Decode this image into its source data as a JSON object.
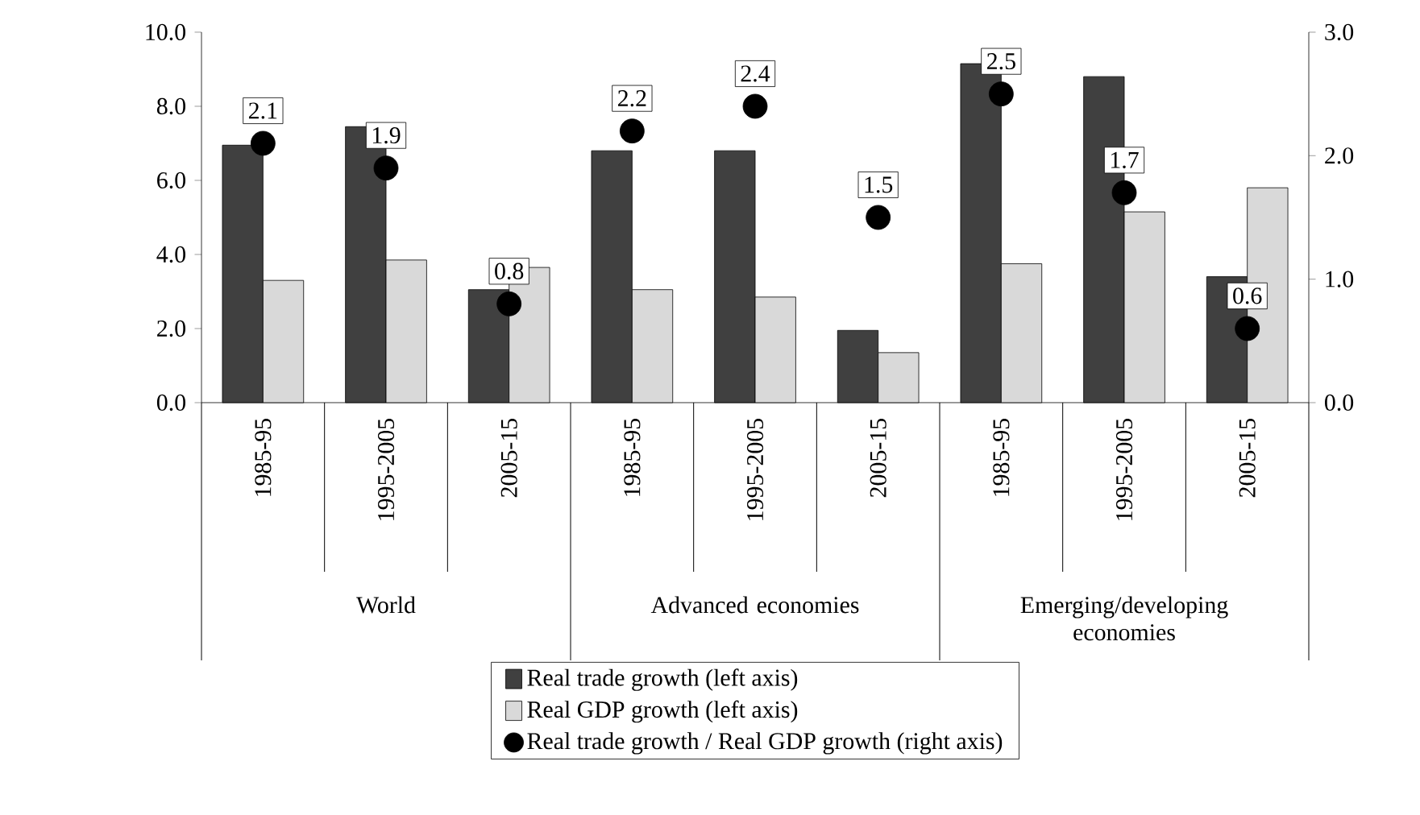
{
  "chart_data": {
    "type": "bar",
    "categories": [
      "1985-95",
      "1995-2005",
      "2005-15",
      "1985-95",
      "1995-2005",
      "2005-15",
      "1985-95",
      "1995-2005",
      "2005-15"
    ],
    "series": [
      {
        "name": "Real trade growth (left axis)",
        "type": "bar",
        "color": "#404040",
        "values": [
          6.95,
          7.45,
          3.05,
          6.8,
          6.8,
          1.95,
          9.15,
          8.8,
          3.4
        ]
      },
      {
        "name": "Real GDP growth (left axis)",
        "type": "bar",
        "color": "#d9d9d9",
        "values": [
          3.3,
          3.85,
          3.65,
          3.05,
          2.85,
          1.35,
          3.75,
          5.15,
          5.8
        ]
      },
      {
        "name": "Real trade growth / Real GDP growth (right axis)",
        "type": "scatter",
        "axis": "y2",
        "color": "#000000",
        "values": [
          2.1,
          1.9,
          0.8,
          2.2,
          2.4,
          1.5,
          2.5,
          1.7,
          0.6
        ],
        "value_labels": [
          "2.1",
          "1.9",
          "0.8",
          "2.2",
          "2.4",
          "1.5",
          "2.5",
          "1.7",
          "0.6"
        ]
      }
    ],
    "ylim": [
      0,
      10
    ],
    "yticks": [
      {
        "value": 0,
        "label": "0.0"
      },
      {
        "value": 2,
        "label": "2.0"
      },
      {
        "value": 4,
        "label": "4.0"
      },
      {
        "value": 6,
        "label": "6.0"
      },
      {
        "value": 8,
        "label": "8.0"
      },
      {
        "value": 10,
        "label": "10.0"
      }
    ],
    "y2lim": [
      0,
      3
    ],
    "y2ticks": [
      {
        "value": 0,
        "label": "0.0"
      },
      {
        "value": 1,
        "label": "1.0"
      },
      {
        "value": 2,
        "label": "2.0"
      },
      {
        "value": 3,
        "label": "3.0"
      }
    ],
    "annotations": [
      "World",
      "Advanced economies",
      "Emerging/developing economies"
    ],
    "legend": "bottom"
  }
}
